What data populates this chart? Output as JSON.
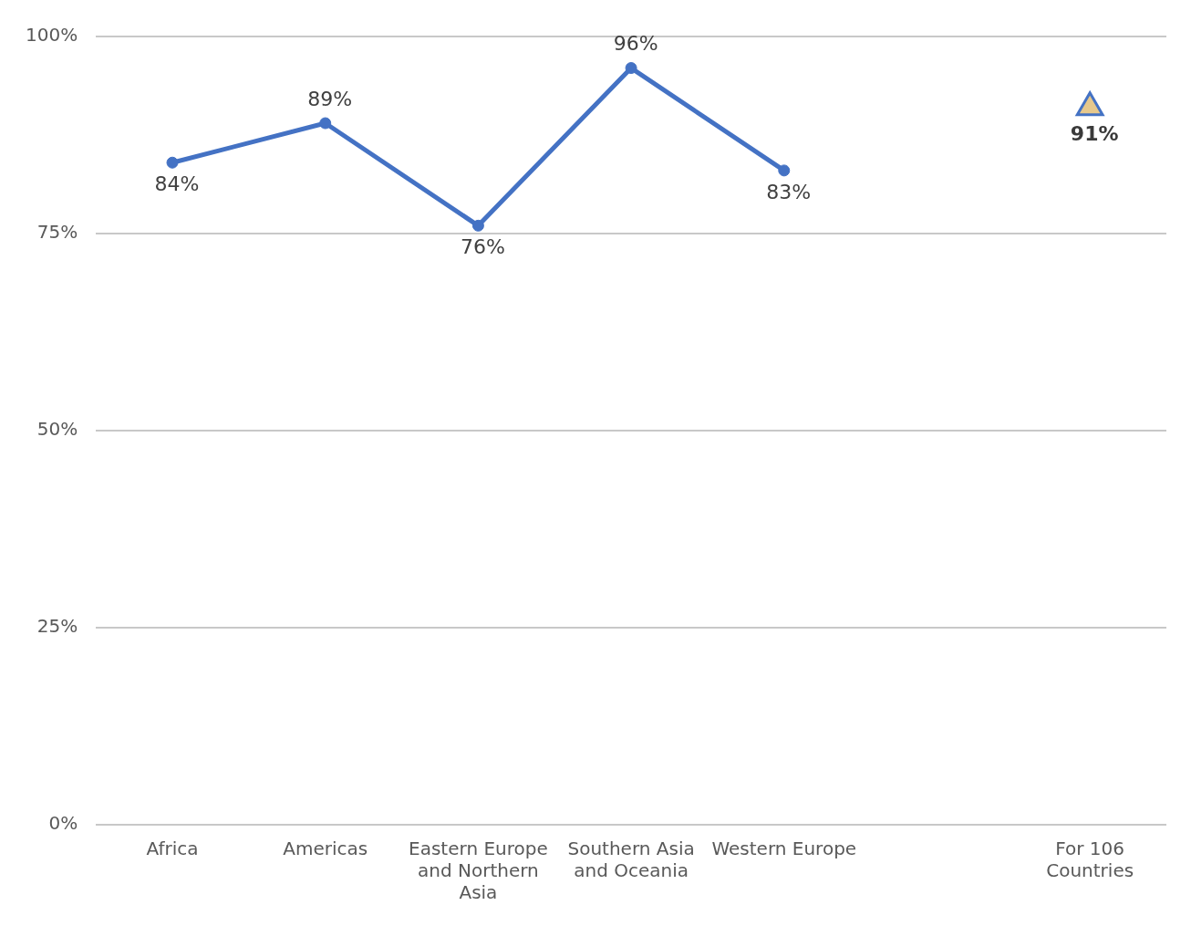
{
  "chart_data": {
    "type": "line",
    "categories": [
      "Africa",
      "Americas",
      "Eastern Europe and Northern Asia",
      "Southern Asia and Oceania",
      "Western Europe",
      null,
      "For 106 Countries"
    ],
    "series": [
      {
        "color": "#4472c4",
        "marker": "circle",
        "values": [
          84,
          89,
          76,
          96,
          83,
          null,
          null
        ],
        "value_labels": [
          "84%",
          "89%",
          "76%",
          "96%",
          "83%",
          null,
          null
        ]
      },
      {
        "type": "scatter",
        "color": "#e6c88c",
        "marker": "triangle",
        "values": [
          null,
          null,
          null,
          null,
          null,
          null,
          91
        ],
        "value_labels": [
          null,
          null,
          null,
          null,
          null,
          null,
          "91%"
        ]
      }
    ],
    "ylim": [
      0,
      100
    ],
    "yticks": [
      {
        "value": 0,
        "label": "0%"
      },
      {
        "value": 25,
        "label": "25%"
      },
      {
        "value": 50,
        "label": "50%"
      },
      {
        "value": 75,
        "label": "75%"
      },
      {
        "value": 100,
        "label": "100%"
      }
    ],
    "grid": "y",
    "legend": false
  }
}
